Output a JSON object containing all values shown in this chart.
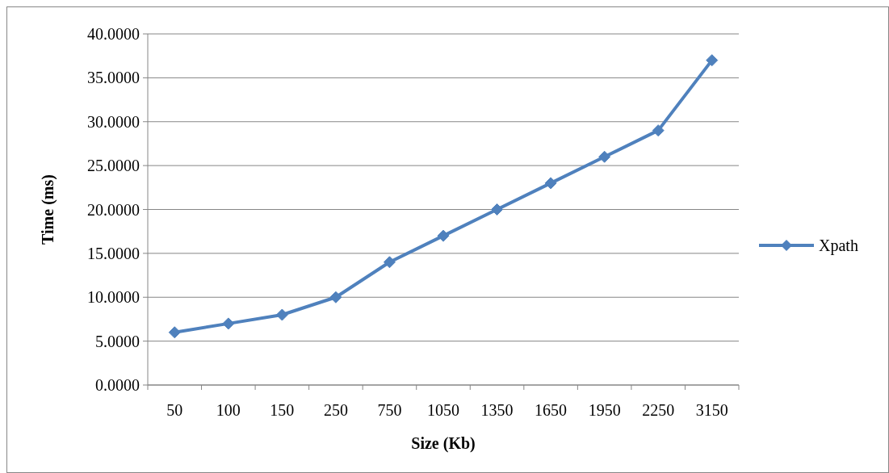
{
  "chart_data": {
    "type": "line",
    "xlabel": "Size (Kb)",
    "ylabel": "Time (ms)",
    "categories": [
      "50",
      "100",
      "150",
      "250",
      "750",
      "1050",
      "1350",
      "1650",
      "1950",
      "2250",
      "3150"
    ],
    "series": [
      {
        "name": "Xpath",
        "color": "#4f81bd",
        "values": [
          6,
          7,
          8,
          10,
          14,
          17,
          20,
          23,
          26,
          29,
          37
        ]
      }
    ],
    "ylim": [
      0,
      40
    ],
    "yticks": [
      {
        "value": 0,
        "label": "0.0000"
      },
      {
        "value": 5,
        "label": "5.0000"
      },
      {
        "value": 10,
        "label": "10.0000"
      },
      {
        "value": 15,
        "label": "15.0000"
      },
      {
        "value": 20,
        "label": "20.0000"
      },
      {
        "value": 25,
        "label": "25.0000"
      },
      {
        "value": 30,
        "label": "30.0000"
      },
      {
        "value": 35,
        "label": "35.0000"
      },
      {
        "value": 40,
        "label": "40.0000"
      }
    ],
    "grid": "y",
    "legend": "right",
    "marker": "diamond",
    "line_style": "solid"
  }
}
